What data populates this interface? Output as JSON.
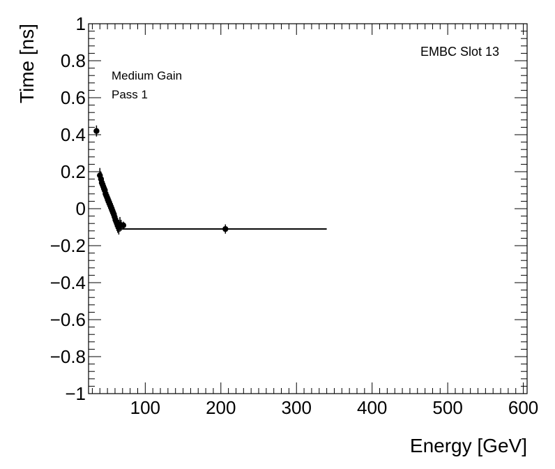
{
  "chart_data": {
    "type": "scatter",
    "xlabel": "Energy [GeV]",
    "ylabel": "Time [ns]",
    "xlim": [
      25,
      605
    ],
    "ylim": [
      -1,
      1
    ],
    "x_ticks": [
      100,
      200,
      300,
      400,
      500,
      600
    ],
    "x_tick_labels": [
      "100",
      "200",
      "300",
      "400",
      "500",
      "600"
    ],
    "y_ticks": [
      -1,
      -0.8,
      -0.6,
      -0.4,
      -0.2,
      0,
      0.2,
      0.4,
      0.6,
      0.8,
      1
    ],
    "y_tick_labels": [
      "−1",
      "−0.8",
      "−0.6",
      "−0.4",
      "−0.2",
      "0",
      "0.2",
      "0.4",
      "0.6",
      "0.8",
      "1"
    ],
    "grid": false,
    "annotations": [
      "Medium Gain",
      "Pass 1",
      "EMBC Slot 13"
    ],
    "series": [
      {
        "points": [
          {
            "x": 35.5,
            "y": 0.42,
            "yerr": 0.03
          },
          {
            "x": 40.0,
            "y": 0.18,
            "yerr": 0.04
          },
          {
            "x": 41.5,
            "y": 0.16,
            "yerr": 0.04
          },
          {
            "x": 42.5,
            "y": 0.14,
            "yerr": 0.04
          },
          {
            "x": 43.5,
            "y": 0.13,
            "yerr": 0.04
          },
          {
            "x": 44.5,
            "y": 0.12,
            "yerr": 0.04
          },
          {
            "x": 45.5,
            "y": 0.11,
            "yerr": 0.04
          },
          {
            "x": 46.5,
            "y": 0.1,
            "yerr": 0.04
          },
          {
            "x": 47.5,
            "y": 0.08,
            "yerr": 0.04
          },
          {
            "x": 48.5,
            "y": 0.07,
            "yerr": 0.04
          },
          {
            "x": 49.5,
            "y": 0.06,
            "yerr": 0.04
          },
          {
            "x": 50.5,
            "y": 0.05,
            "yerr": 0.04
          },
          {
            "x": 51.5,
            "y": 0.04,
            "yerr": 0.04
          },
          {
            "x": 52.5,
            "y": 0.03,
            "yerr": 0.04
          },
          {
            "x": 53.5,
            "y": 0.02,
            "yerr": 0.04
          },
          {
            "x": 54.5,
            "y": 0.01,
            "yerr": 0.04
          },
          {
            "x": 55.5,
            "y": 0.0,
            "yerr": 0.04
          },
          {
            "x": 56.5,
            "y": -0.01,
            "yerr": 0.04
          },
          {
            "x": 57.5,
            "y": -0.02,
            "yerr": 0.04
          },
          {
            "x": 58.5,
            "y": -0.03,
            "yerr": 0.04
          },
          {
            "x": 59.5,
            "y": -0.045,
            "yerr": 0.04
          },
          {
            "x": 60.5,
            "y": -0.06,
            "yerr": 0.04
          },
          {
            "x": 61.5,
            "y": -0.07,
            "yerr": 0.04
          },
          {
            "x": 62.5,
            "y": -0.08,
            "yerr": 0.04
          },
          {
            "x": 63.5,
            "y": -0.09,
            "yerr": 0.04
          },
          {
            "x": 65.0,
            "y": -0.1,
            "yerr": 0.04
          },
          {
            "x": 66.5,
            "y": -0.085,
            "yerr": 0.04
          },
          {
            "x": 68.0,
            "y": -0.09,
            "yerr": 0.03
          },
          {
            "x": 71.0,
            "y": -0.09,
            "yerr": 0.02
          },
          {
            "x": 206.0,
            "y": -0.11,
            "yerr": 0.025
          }
        ]
      }
    ],
    "fit_line": {
      "x": [
        68,
        340
      ],
      "y": [
        -0.11,
        -0.11
      ]
    }
  }
}
